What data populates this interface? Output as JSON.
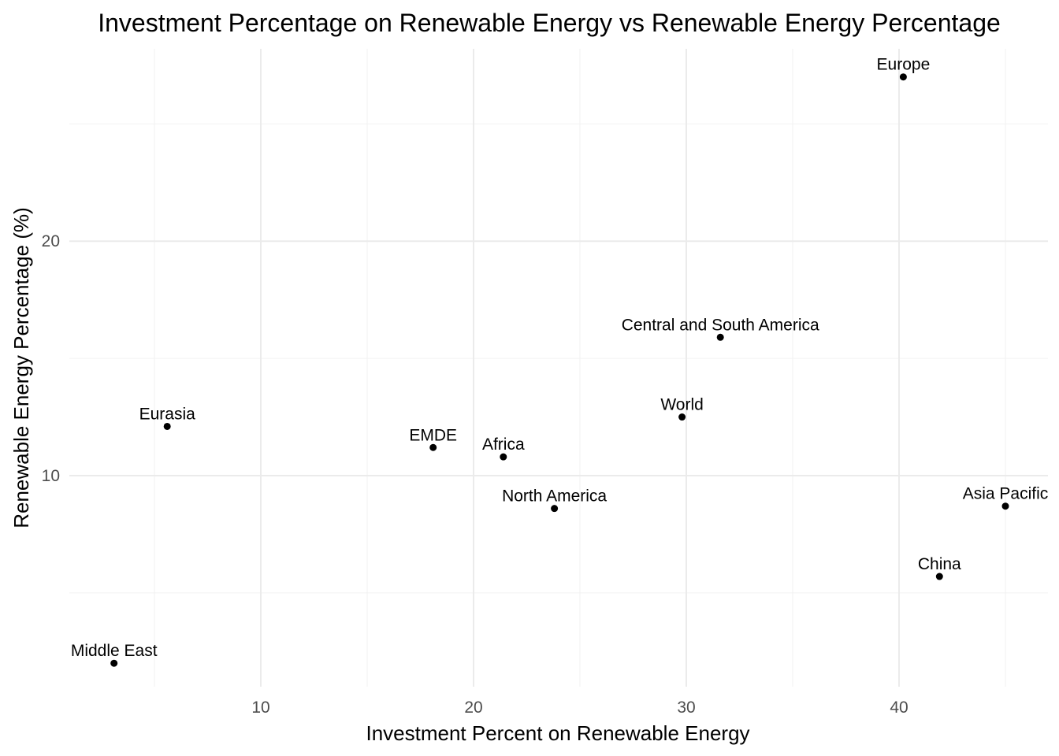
{
  "chart_data": {
    "type": "scatter",
    "title": "Investment Percentage on Renewable Energy vs Renewable Energy Percentage",
    "xlabel": "Investment Percent on Renewable Energy",
    "ylabel": "Renewable Energy Percentage (%)",
    "xlim": [
      1,
      47
    ],
    "ylim": [
      1.0,
      28.2
    ],
    "x_ticks": [
      10,
      20,
      30,
      40
    ],
    "y_ticks": [
      10,
      20
    ],
    "grid": true,
    "legend": "none",
    "point_color": "#000000",
    "points": [
      {
        "label": "Europe",
        "x": 40.2,
        "y": 27.0
      },
      {
        "label": "Central and South America",
        "x": 31.6,
        "y": 15.9
      },
      {
        "label": "World",
        "x": 29.8,
        "y": 12.5
      },
      {
        "label": "Eurasia",
        "x": 5.6,
        "y": 12.1
      },
      {
        "label": "EMDE",
        "x": 18.1,
        "y": 11.2
      },
      {
        "label": "Africa",
        "x": 21.4,
        "y": 10.8
      },
      {
        "label": "North America",
        "x": 23.8,
        "y": 8.6
      },
      {
        "label": "Asia Pacific",
        "x": 45.0,
        "y": 8.7
      },
      {
        "label": "China",
        "x": 41.9,
        "y": 5.7
      },
      {
        "label": "Middle East",
        "x": 3.1,
        "y": 2.0
      }
    ]
  }
}
